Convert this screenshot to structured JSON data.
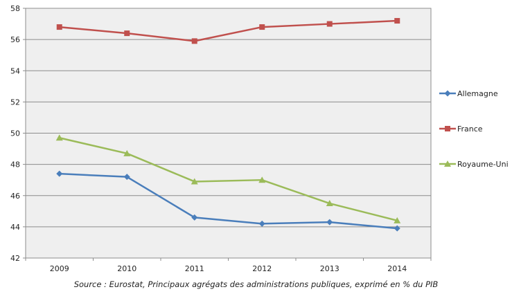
{
  "chart_data": {
    "type": "line",
    "title": "",
    "xlabel": "",
    "ylabel": "",
    "categories": [
      "2009",
      "2010",
      "2011",
      "2012",
      "2013",
      "2014"
    ],
    "ylim": [
      42,
      58
    ],
    "yticks": [
      42,
      44,
      46,
      48,
      50,
      52,
      54,
      56,
      58
    ],
    "grid": true,
    "legend_position": "right",
    "series": [
      {
        "name": "Allemagne",
        "color": "#4a7ebb",
        "marker": "diamond",
        "values": [
          47.4,
          47.2,
          44.6,
          44.2,
          44.3,
          43.9
        ]
      },
      {
        "name": "France",
        "color": "#c0504d",
        "marker": "square",
        "values": [
          56.8,
          56.4,
          55.9,
          56.8,
          57.0,
          57.2
        ]
      },
      {
        "name": "Royaume-Uni",
        "color": "#9bbb59",
        "marker": "triangle",
        "values": [
          49.7,
          48.7,
          46.9,
          47.0,
          45.5,
          44.4
        ]
      }
    ],
    "source": "Source : Eurostat, Principaux agrégats des administrations publiques, exprimé en % du PIB"
  }
}
